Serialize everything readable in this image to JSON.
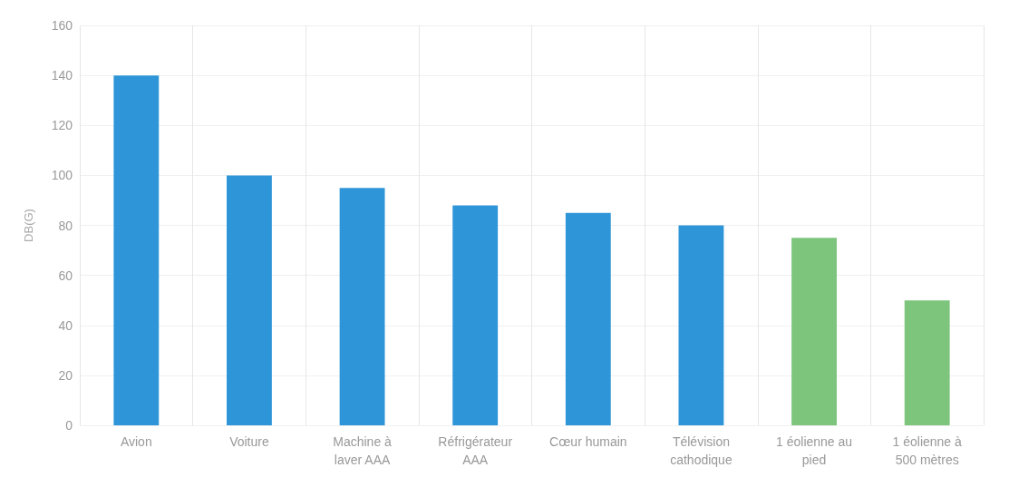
{
  "chart_data": {
    "type": "bar",
    "ylabel": "DB(G)",
    "categories": [
      "Avion",
      "Voiture",
      "Machine à\nlaver AAA",
      "Réfrigérateur\nAAA",
      "Cœur humain",
      "Télévision\ncathodique",
      "1 éolienne au\npied",
      "1 éolienne à\n500 mètres"
    ],
    "values": [
      140,
      100,
      95,
      88,
      85,
      80,
      75,
      50
    ],
    "colors": [
      "#2e96d8",
      "#2e96d8",
      "#2e96d8",
      "#2e96d8",
      "#2e96d8",
      "#2e96d8",
      "#7dc47d",
      "#7dc47d"
    ],
    "ylim": [
      0,
      160
    ],
    "yticks": [
      0,
      20,
      40,
      60,
      80,
      100,
      120,
      140,
      160
    ],
    "grid": true
  }
}
